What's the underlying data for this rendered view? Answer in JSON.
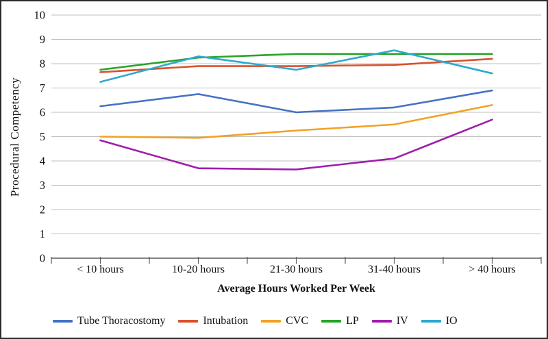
{
  "figure": {
    "background": "#ffffff",
    "border_color": "#2b2b2b"
  },
  "chart_data": {
    "type": "line",
    "title": "",
    "xlabel": "Average Hours Worked Per Week",
    "ylabel": "Procedural Competency",
    "categories": [
      "< 10 hours",
      "10-20 hours",
      "21-30 hours",
      "31-40 hours",
      "> 40 hours"
    ],
    "ylim": [
      0,
      10
    ],
    "ytick_interval": 1,
    "yticks": [
      0,
      1,
      2,
      3,
      4,
      5,
      6,
      7,
      8,
      9,
      10
    ],
    "grid": "horizontal",
    "legend_position": "bottom",
    "axis_color": "#595959",
    "grid_color": "#bfbfbf",
    "text_color": "#111111",
    "series": [
      {
        "name": "Tube Thoracostomy",
        "color": "#4472C4",
        "values": [
          6.25,
          6.75,
          6.0,
          6.2,
          6.9
        ]
      },
      {
        "name": "Intubation",
        "color": "#D9512C",
        "values": [
          7.65,
          7.9,
          7.9,
          7.95,
          8.2
        ]
      },
      {
        "name": "CVC",
        "color": "#F2A125",
        "values": [
          5.0,
          4.95,
          5.25,
          5.5,
          6.3
        ]
      },
      {
        "name": "LP",
        "color": "#28A428",
        "values": [
          7.75,
          8.25,
          8.4,
          8.4,
          8.4
        ]
      },
      {
        "name": "IV",
        "color": "#A01DAB",
        "values": [
          4.85,
          3.7,
          3.65,
          4.1,
          5.7
        ]
      },
      {
        "name": "IO",
        "color": "#2FA9CE",
        "values": [
          7.25,
          8.3,
          7.75,
          8.55,
          7.6
        ]
      }
    ]
  }
}
